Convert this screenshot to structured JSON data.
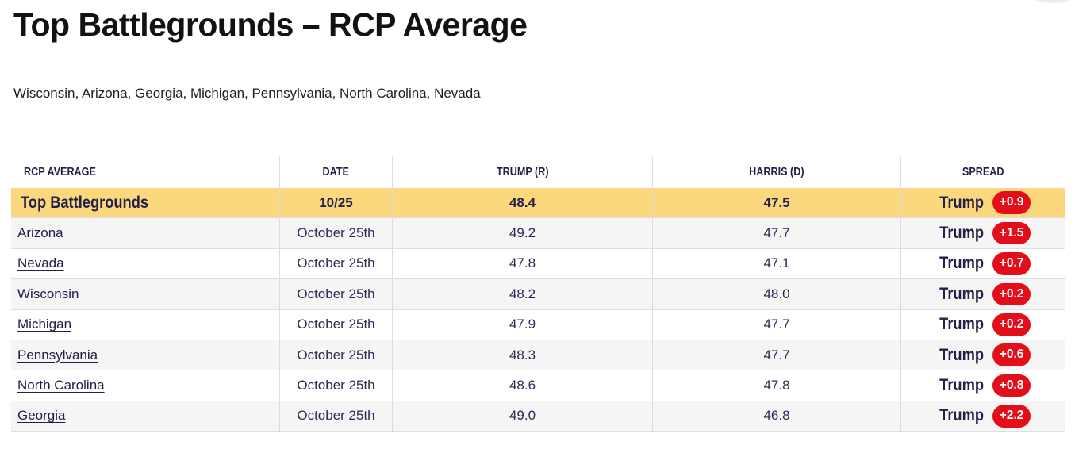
{
  "page": {
    "title": "Top Battlegrounds – RCP Average",
    "subtitle": "Wisconsin, Arizona, Georgia, Michigan, Pennsylvania, North Carolina, Nevada"
  },
  "colors": {
    "highlight_yellow": "#fbd87d",
    "badge_red": "#e20e1a",
    "text_navy": "#232048",
    "stripe_gray": "#f5f5f5"
  },
  "table": {
    "columns": [
      "RCP AVERAGE",
      "DATE",
      "TRUMP (R)",
      "HARRIS (D)",
      "SPREAD"
    ],
    "summary": {
      "name": "Top Battlegrounds",
      "date": "10/25",
      "trump": "48.4",
      "harris": "47.5",
      "winner": "Trump",
      "spread": "+0.9"
    },
    "rows": [
      {
        "name": "Arizona",
        "date": "October 25th",
        "trump": "49.2",
        "harris": "47.7",
        "winner": "Trump",
        "spread": "+1.5"
      },
      {
        "name": "Nevada",
        "date": "October 25th",
        "trump": "47.8",
        "harris": "47.1",
        "winner": "Trump",
        "spread": "+0.7"
      },
      {
        "name": "Wisconsin",
        "date": "October 25th",
        "trump": "48.2",
        "harris": "48.0",
        "winner": "Trump",
        "spread": "+0.2"
      },
      {
        "name": "Michigan",
        "date": "October 25th",
        "trump": "47.9",
        "harris": "47.7",
        "winner": "Trump",
        "spread": "+0.2"
      },
      {
        "name": "Pennsylvania",
        "date": "October 25th",
        "trump": "48.3",
        "harris": "47.7",
        "winner": "Trump",
        "spread": "+0.6"
      },
      {
        "name": "North Carolina",
        "date": "October 25th",
        "trump": "48.6",
        "harris": "47.8",
        "winner": "Trump",
        "spread": "+0.8"
      },
      {
        "name": "Georgia",
        "date": "October 25th",
        "trump": "49.0",
        "harris": "46.8",
        "winner": "Trump",
        "spread": "+2.2"
      }
    ]
  }
}
